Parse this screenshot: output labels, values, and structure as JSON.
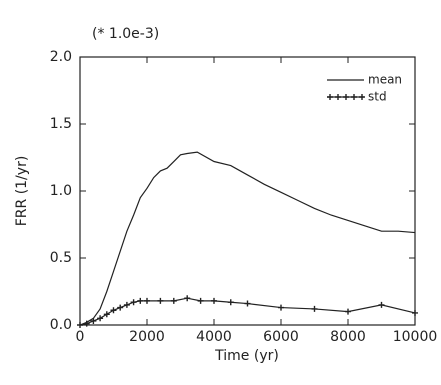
{
  "chart_data": {
    "type": "line",
    "annotation": "(* 1.0e-3)",
    "xlabel": "Time (yr)",
    "ylabel": "FRR (1/yr)",
    "xlim": [
      0,
      10000
    ],
    "xticks": [
      0,
      2000,
      4000,
      6000,
      8000,
      10000
    ],
    "ylim": [
      0,
      2.0
    ],
    "yticks": [
      {
        "value": 0,
        "label": "0.0"
      },
      0.5,
      {
        "value": 1,
        "label": "1.0"
      },
      1.5,
      {
        "value": 2,
        "label": "2.0"
      }
    ],
    "legend": "top-right",
    "series": [
      {
        "name": "mean",
        "color": "#222222",
        "marker": false,
        "x": [
          0,
          200,
          400,
          600,
          800,
          1000,
          1200,
          1400,
          1600,
          1800,
          2000,
          2200,
          2400,
          2600,
          2800,
          3000,
          3200,
          3500,
          4000,
          4500,
          5000,
          5500,
          6000,
          6500,
          7000,
          7500,
          8000,
          8500,
          9000,
          9500,
          10000
        ],
        "values": [
          0,
          0.02,
          0.05,
          0.12,
          0.25,
          0.4,
          0.55,
          0.7,
          0.82,
          0.95,
          1.02,
          1.1,
          1.15,
          1.17,
          1.22,
          1.27,
          1.28,
          1.29,
          1.22,
          1.19,
          1.12,
          1.05,
          0.99,
          0.93,
          0.87,
          0.82,
          0.78,
          0.74,
          0.7,
          0.7,
          0.69
        ]
      },
      {
        "name": "std",
        "color": "#222222",
        "marker": true,
        "x": [
          0,
          200,
          400,
          600,
          800,
          1000,
          1200,
          1400,
          1600,
          1800,
          2000,
          2400,
          2800,
          3200,
          3600,
          4000,
          4500,
          5000,
          6000,
          7000,
          8000,
          9000,
          10000
        ],
        "values": [
          0,
          0.01,
          0.03,
          0.05,
          0.08,
          0.11,
          0.13,
          0.15,
          0.17,
          0.18,
          0.18,
          0.18,
          0.18,
          0.2,
          0.18,
          0.18,
          0.17,
          0.16,
          0.13,
          0.12,
          0.1,
          0.15,
          0.09
        ]
      }
    ]
  }
}
